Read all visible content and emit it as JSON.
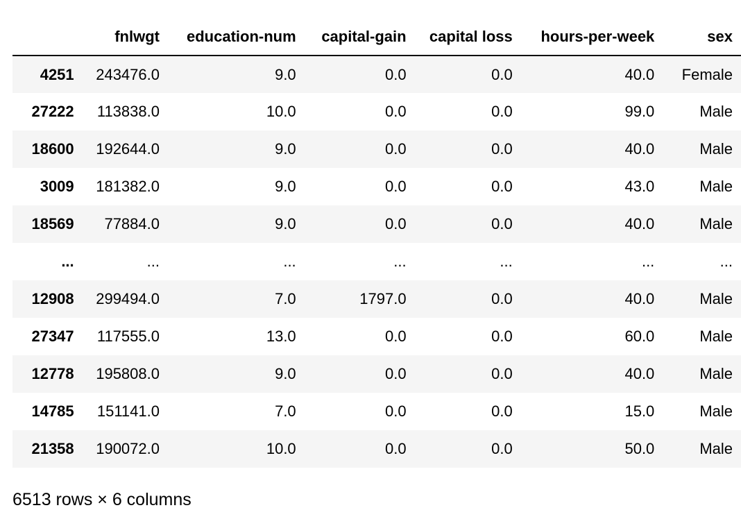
{
  "table": {
    "index_header": "",
    "columns": [
      "fnlwgt",
      "education-num",
      "capital-gain",
      "capital loss",
      "hours-per-week",
      "sex"
    ],
    "rows": [
      {
        "index": "4251",
        "cells": [
          "243476.0",
          "9.0",
          "0.0",
          "0.0",
          "40.0",
          "Female"
        ]
      },
      {
        "index": "27222",
        "cells": [
          "113838.0",
          "10.0",
          "0.0",
          "0.0",
          "99.0",
          "Male"
        ]
      },
      {
        "index": "18600",
        "cells": [
          "192644.0",
          "9.0",
          "0.0",
          "0.0",
          "40.0",
          "Male"
        ]
      },
      {
        "index": "3009",
        "cells": [
          "181382.0",
          "9.0",
          "0.0",
          "0.0",
          "43.0",
          "Male"
        ]
      },
      {
        "index": "18569",
        "cells": [
          "77884.0",
          "9.0",
          "0.0",
          "0.0",
          "40.0",
          "Male"
        ]
      },
      {
        "index": "...",
        "cells": [
          "...",
          "...",
          "...",
          "...",
          "...",
          "..."
        ]
      },
      {
        "index": "12908",
        "cells": [
          "299494.0",
          "7.0",
          "1797.0",
          "0.0",
          "40.0",
          "Male"
        ]
      },
      {
        "index": "27347",
        "cells": [
          "117555.0",
          "13.0",
          "0.0",
          "0.0",
          "60.0",
          "Male"
        ]
      },
      {
        "index": "12778",
        "cells": [
          "195808.0",
          "9.0",
          "0.0",
          "0.0",
          "40.0",
          "Male"
        ]
      },
      {
        "index": "14785",
        "cells": [
          "151141.0",
          "7.0",
          "0.0",
          "0.0",
          "15.0",
          "Male"
        ]
      },
      {
        "index": "21358",
        "cells": [
          "190072.0",
          "10.0",
          "0.0",
          "0.0",
          "50.0",
          "Male"
        ]
      }
    ]
  },
  "footer": {
    "shape_text": "6513 rows × 6 columns"
  }
}
